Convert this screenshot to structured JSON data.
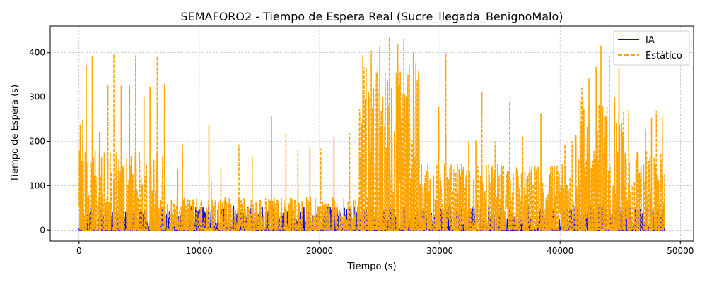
{
  "chart_data": {
    "type": "line",
    "title": "SEMAFORO2 - Tiempo de Espera Real (Sucre_llegada_BenignoMalo)",
    "xlabel": "Tiempo (s)",
    "ylabel": "Tiempo de Espera (s)",
    "xlim": [
      -2400,
      51100
    ],
    "ylim": [
      -25,
      460
    ],
    "xticks": [
      0,
      10000,
      20000,
      30000,
      40000,
      50000
    ],
    "yticks": [
      0,
      100,
      200,
      300,
      400
    ],
    "grid": true,
    "legend_position": "top-right",
    "series": [
      {
        "name": "IA",
        "color": "#0000ff",
        "style": "solid",
        "segments": [
          {
            "x": [
              0,
              7500
            ],
            "y_max": 50
          },
          {
            "x": [
              7500,
              23300
            ],
            "y_max": 55
          },
          {
            "x": [
              23300,
              48700
            ],
            "y_max": 55
          }
        ]
      },
      {
        "name": "Estático",
        "color": "#ffa500",
        "style": "dashed",
        "segments": [
          {
            "x": [
              0,
              7300
            ],
            "base_max": 180,
            "peaks": [
              [
                100,
                238
              ],
              [
                300,
                250
              ],
              [
                600,
                372
              ],
              [
                1100,
                393
              ],
              [
                1700,
                222
              ],
              [
                2400,
                328
              ],
              [
                2900,
                397
              ],
              [
                3500,
                326
              ],
              [
                4200,
                326
              ],
              [
                4700,
                394
              ],
              [
                5400,
                300
              ],
              [
                5900,
                322
              ],
              [
                6500,
                391
              ],
              [
                7100,
                329
              ]
            ]
          },
          {
            "x": [
              7300,
              23300
            ],
            "base_max": 75,
            "peaks": [
              [
                8200,
                137
              ],
              [
                8600,
                194
              ],
              [
                10800,
                237
              ],
              [
                11000,
                110
              ],
              [
                11800,
                140
              ],
              [
                13300,
                193
              ],
              [
                14400,
                165
              ],
              [
                16000,
                257
              ],
              [
                17200,
                218
              ],
              [
                18200,
                180
              ],
              [
                19200,
                188
              ],
              [
                20100,
                184
              ],
              [
                21200,
                210
              ],
              [
                22500,
                218
              ]
            ]
          },
          {
            "x": [
              23300,
              28300
            ],
            "base_max": 380,
            "peaks": [
              [
                23600,
                395
              ],
              [
                24300,
                405
              ],
              [
                25000,
                415
              ],
              [
                25800,
                435
              ],
              [
                26500,
                420
              ],
              [
                27000,
                430
              ],
              [
                27800,
                400
              ]
            ]
          },
          {
            "x": [
              28300,
              41300
            ],
            "base_max": 150,
            "peaks": [
              [
                29000,
                150
              ],
              [
                29900,
                278
              ],
              [
                30500,
                399
              ],
              [
                32400,
                200
              ],
              [
                33000,
                202
              ],
              [
                33500,
                312
              ],
              [
                34600,
                200
              ],
              [
                35800,
                290
              ],
              [
                36900,
                212
              ],
              [
                38400,
                264
              ],
              [
                40400,
                192
              ],
              [
                41000,
                200
              ]
            ]
          },
          {
            "x": [
              41300,
              45300
            ],
            "base_max": 300,
            "peaks": [
              [
                41800,
                320
              ],
              [
                42400,
                342
              ],
              [
                43000,
                368
              ],
              [
                43400,
                416
              ],
              [
                44100,
                392
              ],
              [
                44900,
                365
              ]
            ]
          },
          {
            "x": [
              45300,
              48700
            ],
            "base_max": 180,
            "peaks": [
              [
                45700,
                270
              ],
              [
                46400,
                177
              ],
              [
                47100,
                228
              ],
              [
                47600,
                253
              ],
              [
                48000,
                269
              ],
              [
                48500,
                255
              ]
            ]
          }
        ]
      }
    ]
  }
}
